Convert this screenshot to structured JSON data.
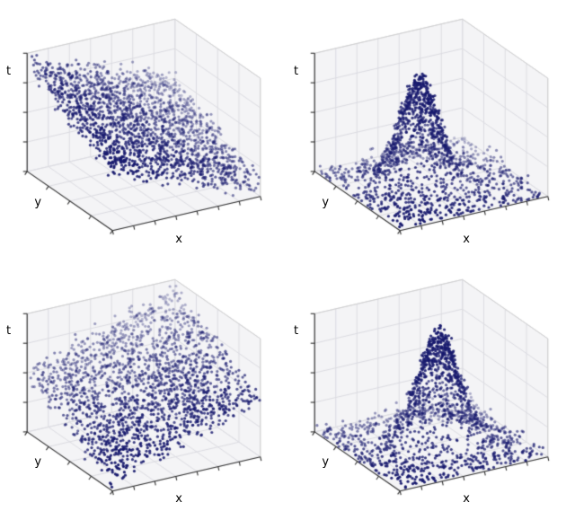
{
  "figure": {
    "background": "#ffffff",
    "rows": 2,
    "cols": 2,
    "panel_order": [
      "top-left",
      "top-right",
      "bottom-left",
      "bottom-right"
    ]
  },
  "chart_data": [
    {
      "position": "top-left",
      "type": "scatter",
      "projection": "3d",
      "xlabel": "x",
      "ylabel": "y",
      "zlabel": "t",
      "axis_ranges": {
        "x": [
          0,
          1
        ],
        "y": [
          0,
          1
        ],
        "t": [
          0,
          1
        ]
      },
      "tick_labels_visible": false,
      "ticks": {
        "x": 8,
        "y": 5,
        "t": 5
      },
      "n_points": 1900,
      "seed": 11,
      "surface": {
        "kind": "plane",
        "base": 0.5,
        "coef_x": -0.42,
        "coef_y": 0.42,
        "noise_sd": 0.05,
        "streak_lines": 25
      },
      "marker": {
        "color": "#181a6e",
        "size": 1.6,
        "alpha_near": 1.0,
        "alpha_far": 0.25
      },
      "view": {
        "elev": 30,
        "azim": -120
      },
      "grid": true,
      "pane_color": "#f4f4f6",
      "grid_color": "#dcdce2",
      "axis_line_color": "#2f2f2f",
      "box_line_color": "#cfcfcf"
    },
    {
      "position": "top-right",
      "type": "scatter",
      "projection": "3d",
      "xlabel": "x",
      "ylabel": "y",
      "zlabel": "t",
      "axis_ranges": {
        "x": [
          0,
          1
        ],
        "y": [
          0,
          1
        ],
        "t": [
          0,
          1
        ]
      },
      "tick_labels_visible": false,
      "ticks": {
        "x": 8,
        "y": 5,
        "t": 5
      },
      "n_points": 1500,
      "seed": 23,
      "surface": {
        "kind": "peak",
        "center_x": 0.45,
        "center_y": 0.55,
        "sigma": 0.115,
        "amplitude": 0.86,
        "noise_sd": 0.045,
        "cluster_fraction": 0.45
      },
      "marker": {
        "color": "#181a6e",
        "size": 1.6,
        "alpha_near": 1.0,
        "alpha_far": 0.25
      },
      "view": {
        "elev": 30,
        "azim": -120
      },
      "grid": true,
      "pane_color": "#f4f4f6",
      "grid_color": "#dcdce2",
      "axis_line_color": "#2f2f2f",
      "box_line_color": "#cfcfcf"
    },
    {
      "position": "bottom-left",
      "type": "scatter",
      "projection": "3d",
      "xlabel": "x",
      "ylabel": "y",
      "zlabel": "t",
      "axis_ranges": {
        "x": [
          0,
          1
        ],
        "y": [
          0,
          1
        ],
        "t": [
          0,
          1
        ]
      },
      "tick_labels_visible": false,
      "ticks": {
        "x": 8,
        "y": 5,
        "t": 5
      },
      "n_points": 1900,
      "seed": 37,
      "surface": {
        "kind": "plane",
        "base": 0.08,
        "coef_x": 0.42,
        "coef_y": 0.42,
        "noise_sd": 0.05,
        "streak_lines": 25
      },
      "marker": {
        "color": "#181a6e",
        "size": 1.6,
        "alpha_near": 1.0,
        "alpha_far": 0.25
      },
      "view": {
        "elev": 30,
        "azim": -120
      },
      "grid": true,
      "pane_color": "#f4f4f6",
      "grid_color": "#dcdce2",
      "axis_line_color": "#2f2f2f",
      "box_line_color": "#cfcfcf"
    },
    {
      "position": "bottom-right",
      "type": "scatter",
      "projection": "3d",
      "xlabel": "x",
      "ylabel": "y",
      "zlabel": "t",
      "axis_ranges": {
        "x": [
          0,
          1
        ],
        "y": [
          0,
          1
        ],
        "t": [
          0,
          1
        ]
      },
      "tick_labels_visible": false,
      "ticks": {
        "x": 8,
        "y": 5,
        "t": 5
      },
      "n_points": 1500,
      "seed": 51,
      "surface": {
        "kind": "peak",
        "center_x": 0.55,
        "center_y": 0.5,
        "sigma": 0.125,
        "amplitude": 0.9,
        "noise_sd": 0.045,
        "cluster_fraction": 0.45
      },
      "marker": {
        "color": "#181a6e",
        "size": 1.6,
        "alpha_near": 1.0,
        "alpha_far": 0.25
      },
      "view": {
        "elev": 30,
        "azim": -120
      },
      "grid": true,
      "pane_color": "#f4f4f6",
      "grid_color": "#dcdce2",
      "axis_line_color": "#2f2f2f",
      "box_line_color": "#cfcfcf"
    }
  ]
}
